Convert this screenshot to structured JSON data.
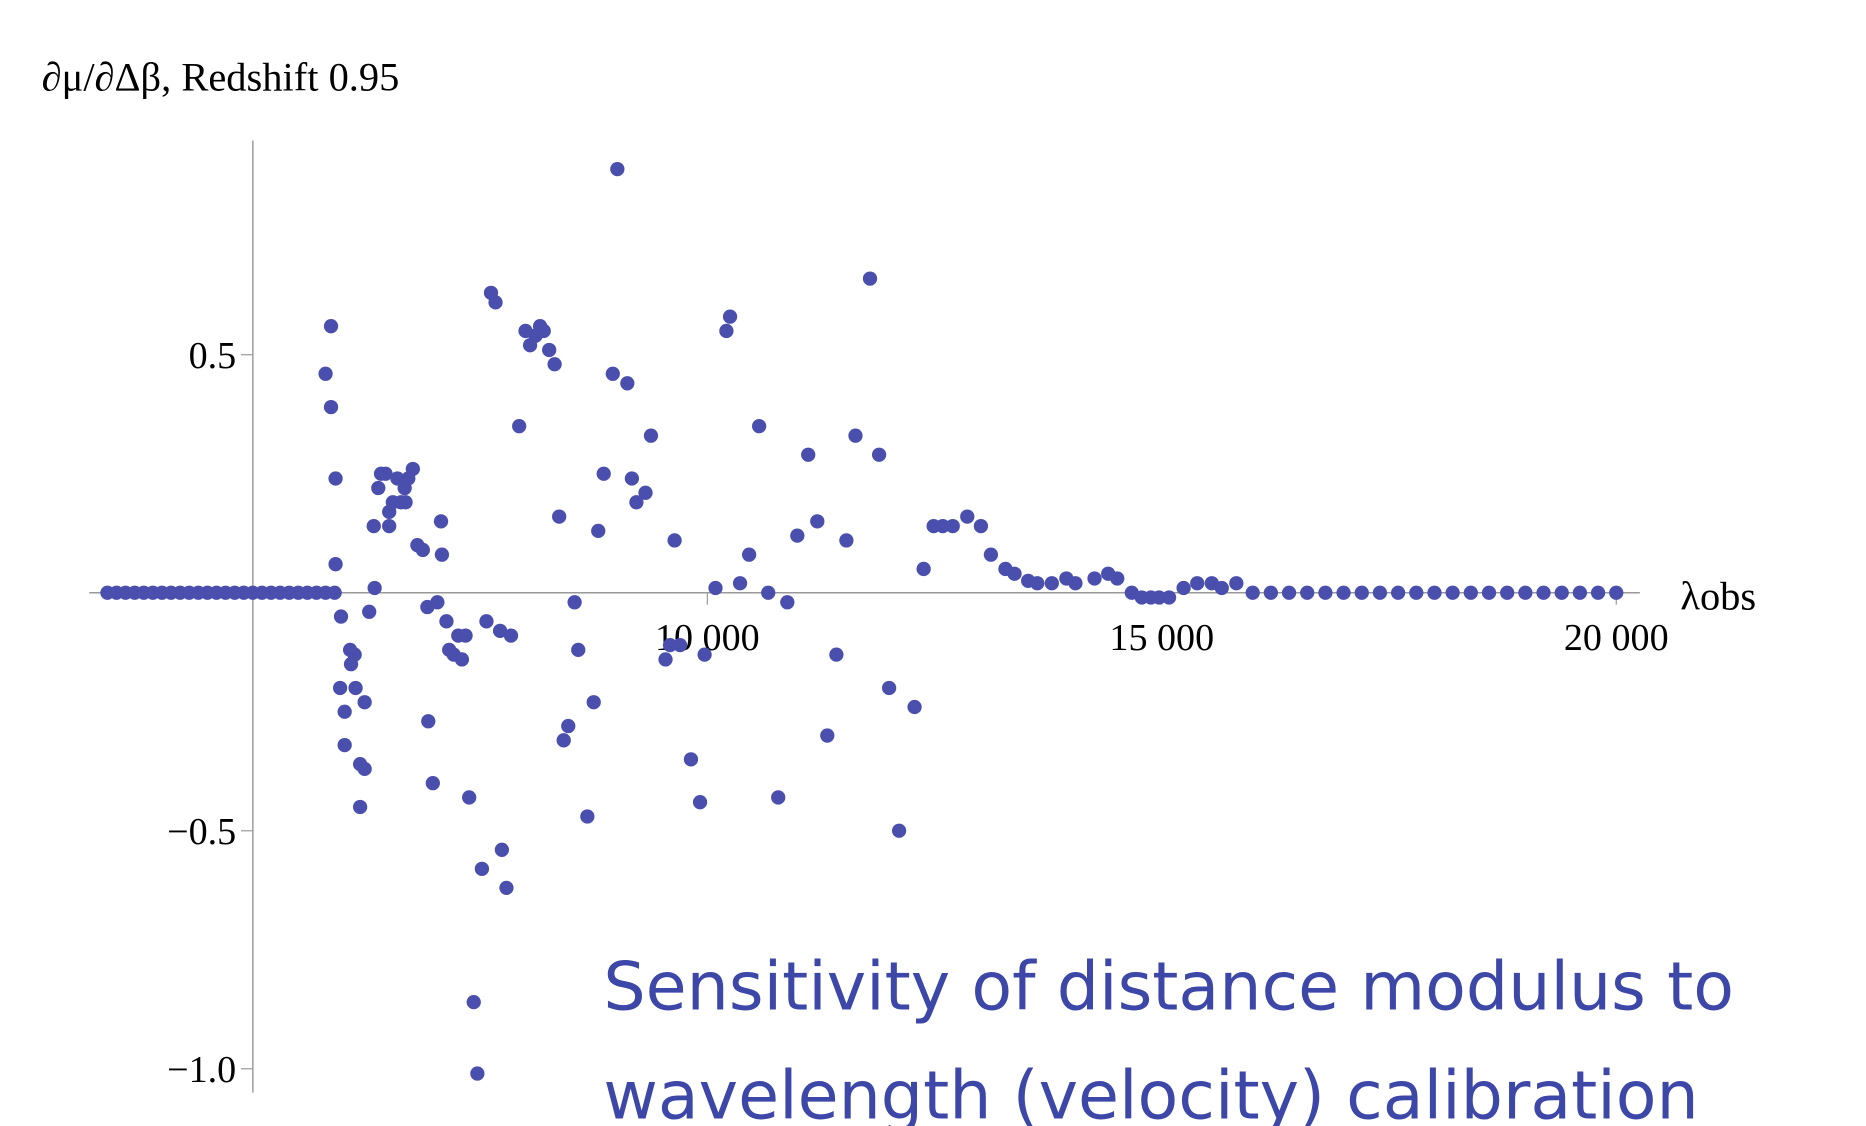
{
  "chart_data": {
    "type": "scatter",
    "title": "∂μ/∂Δβ, Redshift 0.95",
    "x_label": "λobs",
    "annotation": [
      "Sensitivity of distance modulus to",
      "wavelength (velocity) calibration"
    ],
    "color": "#4a4fae",
    "xlim": [
      3200,
      20260
    ],
    "ylim": [
      -1.05,
      0.95
    ],
    "axes_origin": [
      5000,
      0
    ],
    "xticks": [
      {
        "value": 10000,
        "label": "10 000"
      },
      {
        "value": 15000,
        "label": "15 000"
      },
      {
        "value": 20000,
        "label": "20 000"
      }
    ],
    "yticks": [
      {
        "value": -1,
        "label": "−1.0"
      },
      {
        "value": -0.5,
        "label": "−0.5"
      },
      0.5
    ],
    "x": [
      3400,
      3500,
      3600,
      3700,
      3800,
      3900,
      4000,
      4100,
      4200,
      4300,
      4400,
      4500,
      4600,
      4700,
      4800,
      4900,
      5000,
      5100,
      5200,
      5300,
      5400,
      5500,
      5600,
      5700,
      5800,
      5900,
      5860,
      5800,
      5860,
      5910,
      5910,
      5970,
      5960,
      6010,
      6010,
      6070,
      6080,
      6120,
      6130,
      6180,
      6230,
      6180,
      6230,
      6280,
      6340,
      6330,
      6380,
      6410,
      6460,
      6500,
      6500,
      6540,
      6590,
      6630,
      6670,
      6680,
      6710,
      6760,
      6810,
      6870,
      6920,
      6930,
      6980,
      7030,
      7070,
      7080,
      7130,
      7160,
      7210,
      7260,
      7300,
      7340,
      7380,
      7430,
      7470,
      7520,
      7570,
      7620,
      7670,
      7720,
      7740,
      7790,
      7840,
      7930,
      8000,
      8050,
      8110,
      8160,
      8200,
      8260,
      8320,
      8370,
      8420,
      8470,
      8540,
      8580,
      8680,
      8750,
      8800,
      8860,
      8960,
      9010,
      9120,
      9170,
      9220,
      9320,
      9380,
      9540,
      9590,
      9640,
      9700,
      9820,
      9920,
      9970,
      10090,
      10210,
      10250,
      10360,
      10460,
      10570,
      10670,
      10780,
      10880,
      10990,
      11110,
      11210,
      11320,
      11420,
      11530,
      11630,
      11790,
      11890,
      12000,
      12110,
      12280,
      12380,
      12490,
      12590,
      12700,
      12860,
      13010,
      13120,
      13280,
      13380,
      13530,
      13630,
      13790,
      13950,
      14050,
      14260,
      14410,
      14510,
      14670,
      14780,
      14880,
      14970,
      15080,
      15240,
      15390,
      15550,
      15660,
      15820,
      16000,
      16200,
      16400,
      16600,
      16800,
      17000,
      17200,
      17400,
      17600,
      17800,
      18000,
      18200,
      18400,
      18600,
      18800,
      19000,
      19200,
      19400,
      19600,
      19800,
      20000
    ],
    "values": [
      0,
      0,
      0,
      0,
      0,
      0,
      0,
      0,
      0,
      0,
      0,
      0,
      0,
      0,
      0,
      0,
      0,
      0,
      0,
      0,
      0,
      0,
      0,
      0,
      0,
      0,
      0.56,
      0.46,
      0.39,
      0.24,
      0.06,
      -0.05,
      -0.2,
      -0.25,
      -0.32,
      -0.12,
      -0.15,
      -0.13,
      -0.2,
      -0.36,
      -0.37,
      -0.45,
      -0.23,
      -0.04,
      0.01,
      0.14,
      0.22,
      0.25,
      0.25,
      0.14,
      0.17,
      0.19,
      0.24,
      0.19,
      0.22,
      0.19,
      0.24,
      0.26,
      0.1,
      0.09,
      -0.03,
      -0.27,
      -0.4,
      -0.02,
      0.15,
      0.08,
      -0.06,
      -0.12,
      -0.13,
      -0.09,
      -0.14,
      -0.09,
      -0.43,
      -0.86,
      -1.01,
      -0.58,
      -0.06,
      0.63,
      0.61,
      -0.08,
      -0.54,
      -0.62,
      -0.09,
      0.35,
      0.55,
      0.52,
      0.54,
      0.56,
      0.55,
      0.51,
      0.48,
      0.16,
      -0.31,
      -0.28,
      -0.02,
      -0.12,
      -0.47,
      -0.23,
      0.13,
      0.25,
      0.46,
      0.89,
      0.44,
      0.24,
      0.19,
      0.21,
      0.33,
      -0.14,
      -0.11,
      0.11,
      -0.11,
      -0.35,
      -0.44,
      -0.13,
      0.01,
      0.55,
      0.58,
      0.02,
      0.08,
      0.35,
      0,
      -0.43,
      -0.02,
      0.12,
      0.29,
      0.15,
      -0.3,
      -0.13,
      0.11,
      0.33,
      0.66,
      0.29,
      -0.2,
      -0.5,
      -0.24,
      0.05,
      0.14,
      0.14,
      0.14,
      0.16,
      0.14,
      0.08,
      0.05,
      0.04,
      0.025,
      0.02,
      0.02,
      0.03,
      0.02,
      0.03,
      0.04,
      0.03,
      0,
      -0.01,
      -0.01,
      -0.01,
      -0.01,
      0.01,
      0.02,
      0.02,
      0.01,
      0.02,
      0,
      0,
      0,
      0,
      0,
      0,
      0,
      0,
      0,
      0,
      0,
      0,
      0,
      0,
      0,
      0,
      0,
      0,
      0,
      0,
      0
    ]
  }
}
